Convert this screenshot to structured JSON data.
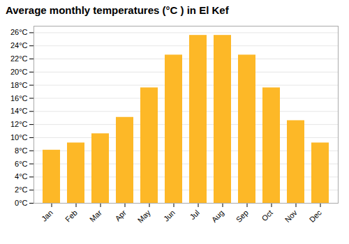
{
  "chart_data": {
    "type": "bar",
    "title": "Average monthly temperatures (°C ) in El Kef",
    "categories": [
      "Jan",
      "Feb",
      "Mar",
      "Apr",
      "May",
      "Jun",
      "Jul",
      "Aug",
      "Sep",
      "Oct",
      "Nov",
      "Dec"
    ],
    "values": [
      8.1,
      9.2,
      10.6,
      13.1,
      17.6,
      22.6,
      25.6,
      25.6,
      22.6,
      17.6,
      12.6,
      9.2
    ],
    "color": "#FDB827",
    "ylim": [
      0,
      27
    ],
    "yticks": [
      {
        "value": 0,
        "label": "0°C"
      },
      {
        "value": 2,
        "label": "2°C"
      },
      {
        "value": 4,
        "label": "4°C"
      },
      {
        "value": 6,
        "label": "6°C"
      },
      {
        "value": 8,
        "label": "8°C"
      },
      {
        "value": 10,
        "label": "10°C"
      },
      {
        "value": 12,
        "label": "12°C"
      },
      {
        "value": 14,
        "label": "14°C"
      },
      {
        "value": 16,
        "label": "16°C"
      },
      {
        "value": 18,
        "label": "18°C"
      },
      {
        "value": 20,
        "label": "20°C"
      },
      {
        "value": 22,
        "label": "22°C"
      },
      {
        "value": 24,
        "label": "24°C"
      },
      {
        "value": 26,
        "label": "26°C"
      }
    ],
    "grid": true
  }
}
